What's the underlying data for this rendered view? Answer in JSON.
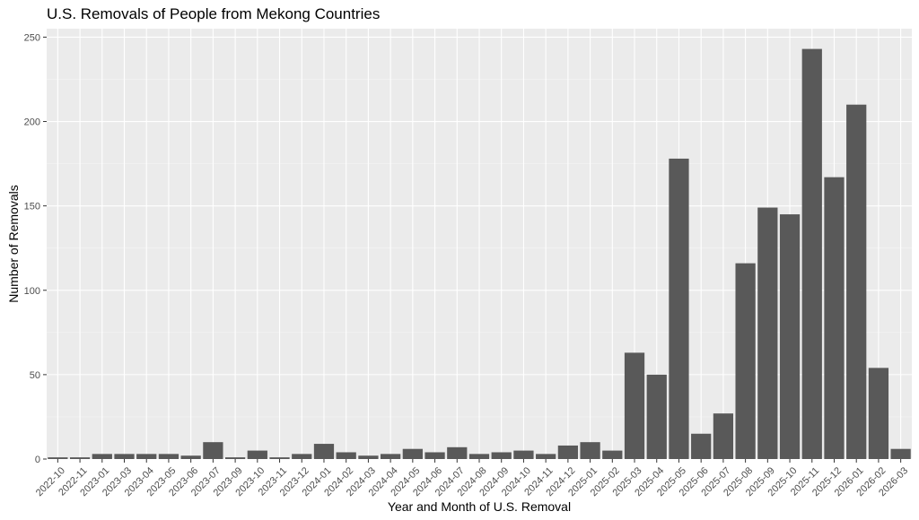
{
  "chart_data": {
    "type": "bar",
    "title": "U.S. Removals of People from Mekong Countries",
    "xlabel": "Year and Month of U.S. Removal",
    "ylabel": "Number of Removals",
    "ylim": [
      0,
      255
    ],
    "yticks": [
      0,
      50,
      100,
      150,
      200,
      250
    ],
    "categories": [
      "2022-10",
      "2022-11",
      "2023-01",
      "2023-03",
      "2023-04",
      "2023-05",
      "2023-06",
      "2023-07",
      "2023-09",
      "2023-10",
      "2023-11",
      "2023-12",
      "2024-01",
      "2024-02",
      "2024-03",
      "2024-04",
      "2024-05",
      "2024-06",
      "2024-07",
      "2024-08",
      "2024-09",
      "2024-10",
      "2024-11",
      "2024-12",
      "2025-01",
      "2025-02",
      "2025-03",
      "2025-04",
      "2025-05",
      "2025-06",
      "2025-07",
      "2025-08",
      "2025-09",
      "2025-10",
      "2025-11",
      "2025-12",
      "2026-01",
      "2026-02",
      "2026-03"
    ],
    "values": [
      1,
      1,
      3,
      3,
      3,
      3,
      2,
      10,
      1,
      5,
      1,
      3,
      9,
      4,
      2,
      3,
      6,
      4,
      7,
      3,
      4,
      5,
      3,
      8,
      10,
      5,
      63,
      50,
      178,
      15,
      27,
      116,
      149,
      145,
      243,
      167,
      210,
      54,
      6
    ],
    "grid": true,
    "colors": {
      "bar": "#595959",
      "panel": "#ebebeb",
      "grid_major": "#ffffff",
      "grid_minor": "#f5f5f5",
      "tick": "#4d4d4d"
    }
  }
}
